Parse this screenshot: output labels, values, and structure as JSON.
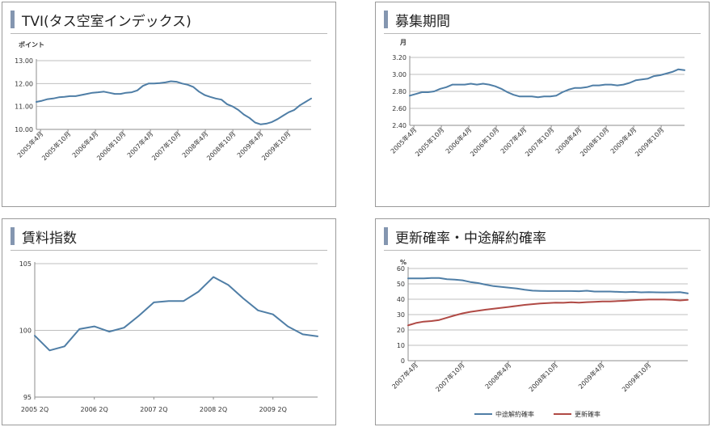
{
  "panels": [
    {
      "title": "TVI(タス空室インデックス)",
      "chart_data": {
        "type": "line",
        "ylabel": "ポイント",
        "ylim": [
          10,
          13
        ],
        "y_ticks": [
          "10.00",
          "11.00",
          "12.00",
          "13.00"
        ],
        "x_tick_labels": [
          "2005年4月",
          "2005年10月",
          "2006年4月",
          "2006年10月",
          "2007年4月",
          "2007年10月",
          "2008年4月",
          "2008年10月",
          "2009年4月",
          "2009年10月"
        ],
        "series": [
          {
            "name": "",
            "color": "#4f7ea6",
            "values": [
              11.2,
              11.25,
              11.32,
              11.35,
              11.4,
              11.42,
              11.45,
              11.45,
              11.5,
              11.55,
              11.6,
              11.62,
              11.65,
              11.6,
              11.55,
              11.55,
              11.6,
              11.62,
              11.7,
              11.9,
              12.0,
              12.0,
              12.02,
              12.05,
              12.1,
              12.08,
              12.0,
              11.95,
              11.85,
              11.65,
              11.5,
              11.42,
              11.35,
              11.3,
              11.1,
              11.0,
              10.85,
              10.65,
              10.5,
              10.3,
              10.22,
              10.25,
              10.32,
              10.45,
              10.6,
              10.75,
              10.85,
              11.05,
              11.2,
              11.35
            ]
          }
        ]
      }
    },
    {
      "title": "募集期間",
      "chart_data": {
        "type": "line",
        "ylabel": "月",
        "ylim": [
          2.4,
          3.2
        ],
        "y_ticks": [
          "2.40",
          "2.60",
          "2.80",
          "3.00",
          "3.20"
        ],
        "x_tick_labels": [
          "2005年4月",
          "2005年10月",
          "2006年4月",
          "2006年10月",
          "2007年4月",
          "2007年10月",
          "2008年4月",
          "2008年10月",
          "2009年4月",
          "2009年10月"
        ],
        "series": [
          {
            "name": "",
            "color": "#4f7ea6",
            "values": [
              2.75,
              2.77,
              2.79,
              2.79,
              2.8,
              2.83,
              2.85,
              2.88,
              2.88,
              2.88,
              2.89,
              2.88,
              2.89,
              2.88,
              2.86,
              2.83,
              2.79,
              2.76,
              2.74,
              2.74,
              2.74,
              2.73,
              2.74,
              2.74,
              2.75,
              2.79,
              2.82,
              2.84,
              2.84,
              2.85,
              2.87,
              2.87,
              2.88,
              2.88,
              2.87,
              2.88,
              2.9,
              2.93,
              2.94,
              2.95,
              2.98,
              2.99,
              3.01,
              3.03,
              3.06,
              3.05
            ]
          }
        ]
      }
    },
    {
      "title": "賃料指数",
      "chart_data": {
        "type": "line",
        "ylabel": "",
        "ylim": [
          95,
          105
        ],
        "y_ticks": [
          "95",
          "100",
          "105"
        ],
        "x_tick_labels": [
          "2005 2Q",
          "2006 2Q",
          "2007 2Q",
          "2008 2Q",
          "2009 2Q"
        ],
        "series": [
          {
            "name": "",
            "color": "#4f7ea6",
            "values": [
              99.6,
              98.5,
              98.8,
              100.1,
              100.3,
              99.9,
              100.2,
              101.1,
              102.1,
              102.2,
              102.2,
              102.9,
              104.0,
              103.4,
              102.4,
              101.5,
              101.2,
              100.3,
              99.7,
              99.55
            ]
          }
        ]
      }
    },
    {
      "title": "更新確率・中途解約確率",
      "chart_data": {
        "type": "line",
        "ylabel": "%",
        "ylim": [
          0,
          60
        ],
        "y_ticks": [
          "0",
          "10",
          "20",
          "30",
          "40",
          "50",
          "60"
        ],
        "x_tick_labels": [
          "2007年4月",
          "2007年10月",
          "2008年4月",
          "2008年10月",
          "2009年4月",
          "2009年10月"
        ],
        "legend_position": "bottom",
        "series": [
          {
            "name": "中途解約確率",
            "color": "#4f7ea6",
            "values": [
              53.5,
              53.5,
              53.5,
              53.8,
              53.8,
              53.0,
              52.8,
              52.3,
              51.2,
              50.5,
              49.5,
              48.5,
              48.0,
              47.5,
              47.0,
              46.2,
              45.6,
              45.4,
              45.3,
              45.3,
              45.3,
              45.3,
              45.2,
              45.5,
              45.0,
              45.0,
              45.0,
              44.8,
              44.6,
              44.8,
              44.5,
              44.6,
              44.5,
              44.4,
              44.5,
              44.6,
              43.8
            ]
          },
          {
            "name": "更新確率",
            "color": "#b04a45",
            "values": [
              23.0,
              24.5,
              25.4,
              25.8,
              26.5,
              28.0,
              29.5,
              30.8,
              31.8,
              32.5,
              33.2,
              33.8,
              34.4,
              35.0,
              35.7,
              36.3,
              36.8,
              37.2,
              37.5,
              37.8,
              37.7,
              38.0,
              37.8,
              38.1,
              38.3,
              38.5,
              38.5,
              38.8,
              39.0,
              39.3,
              39.6,
              39.8,
              39.8,
              39.8,
              39.6,
              39.2,
              39.6
            ]
          }
        ]
      }
    }
  ]
}
